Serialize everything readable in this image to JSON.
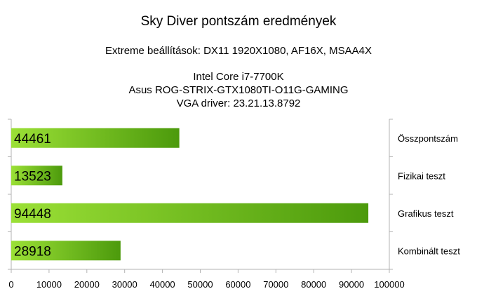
{
  "chart_data": {
    "type": "bar",
    "orientation": "horizontal",
    "title": "Sky Diver pontszám eredmények",
    "subtitle_lines": [
      "Extreme beállítások: DX11 1920X1080, AF16X, MSAA4X",
      "Intel Core i7-7700K",
      "Asus ROG-STRIX-GTX1080TI-O11G-GAMING",
      "VGA driver: 23.21.13.8792"
    ],
    "categories": [
      "Összpontszám",
      "Fizikai teszt",
      "Grafikus teszt",
      "Kombinált teszt"
    ],
    "values": [
      44461,
      13523,
      94448,
      28918
    ],
    "value_labels": [
      "44461",
      "13523",
      "94448",
      "28918"
    ],
    "xlim": [
      0,
      100000
    ],
    "x_ticks": [
      "0",
      "10000",
      "20000",
      "30000",
      "40000",
      "50000",
      "60000",
      "70000",
      "80000",
      "90000",
      "100000"
    ],
    "category_axis_position": "right",
    "grid": false,
    "legend": "none",
    "colors": {
      "bar_light": "#9be036",
      "bar_dark": "#4c9a0c",
      "axis": "#b3b3b3"
    }
  }
}
